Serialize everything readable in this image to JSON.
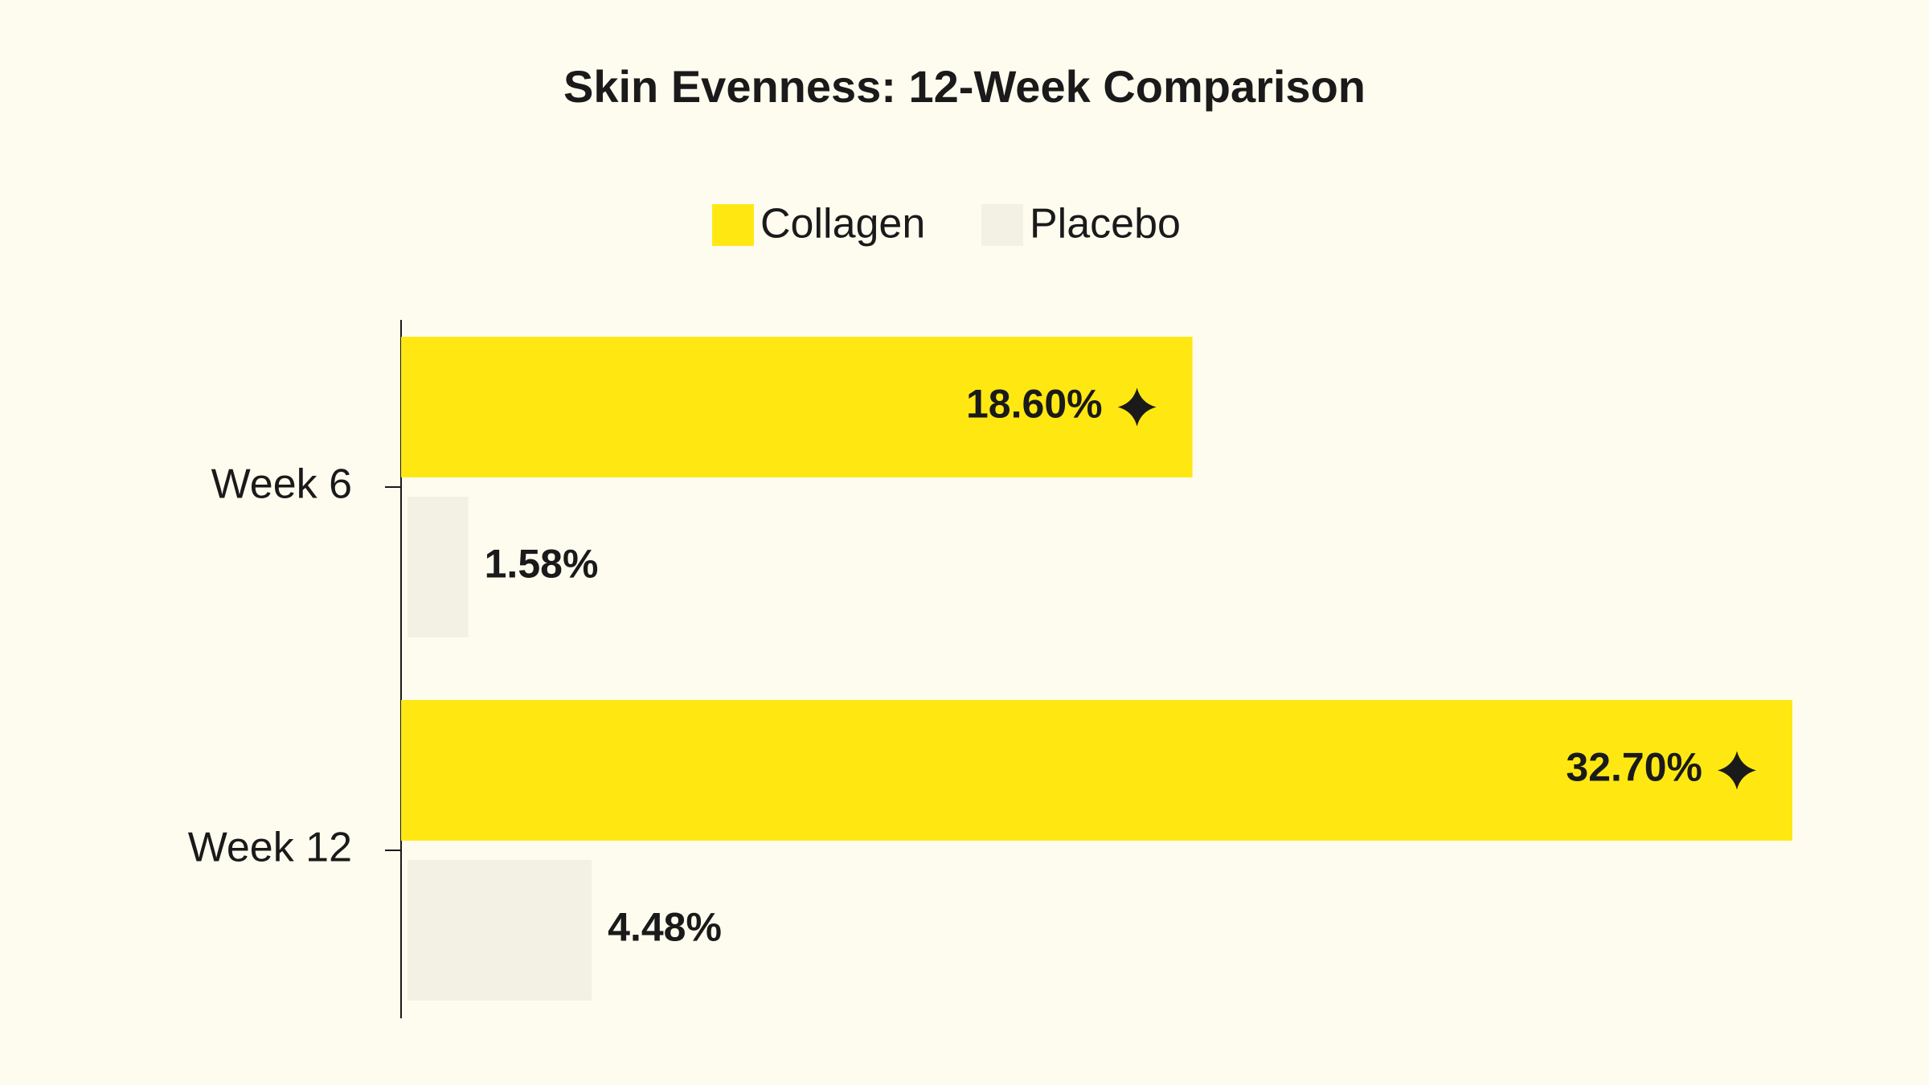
{
  "chart_data": {
    "type": "bar",
    "orientation": "horizontal",
    "title": "Skin Evenness: 12-Week Comparison",
    "categories": [
      "Week 6",
      "Week 12"
    ],
    "series": [
      {
        "name": "Collagen",
        "color": "#FFE812",
        "values": [
          18.6,
          32.7
        ],
        "value_labels": [
          "18.60%",
          "32.70%"
        ]
      },
      {
        "name": "Placebo",
        "color": "#F3F1E4",
        "values": [
          1.58,
          4.48
        ],
        "value_labels": [
          "1.58%",
          "4.48%"
        ]
      }
    ],
    "legend": "top"
  }
}
